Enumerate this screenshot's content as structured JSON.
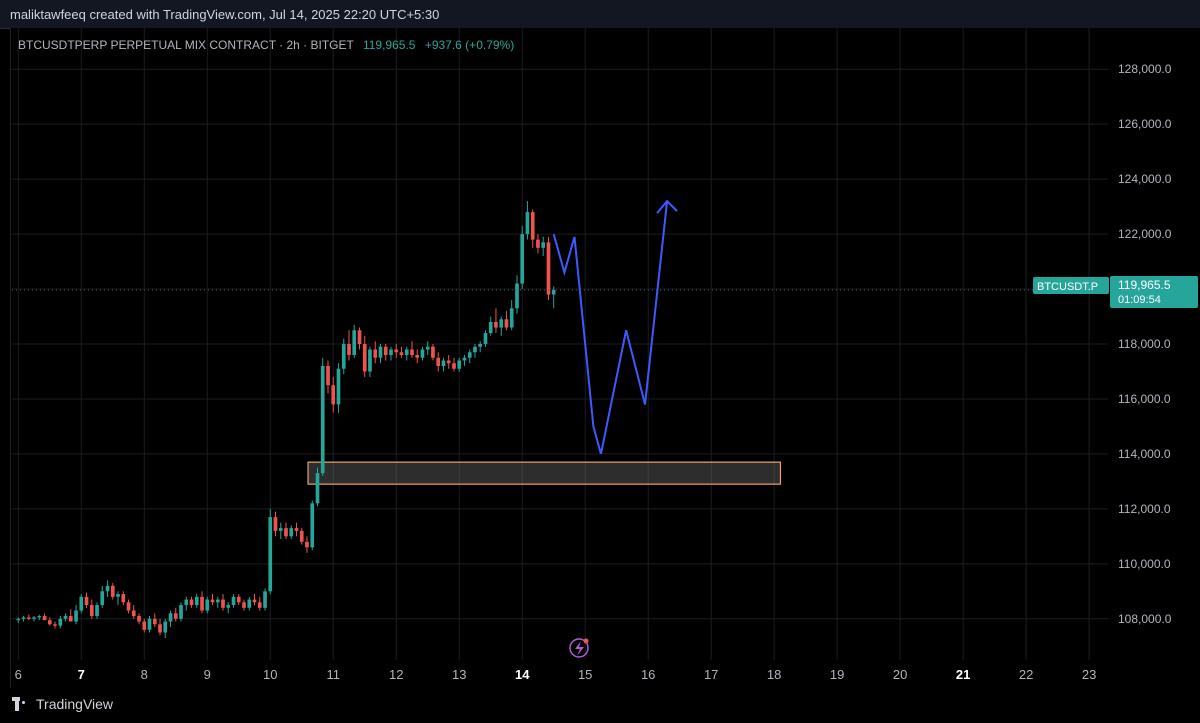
{
  "credit": "maliktawfeeq created with TradingView.com, Jul 14, 2025 22:20 UTC+5:30",
  "legend": {
    "symbol": "BTCUSDTPERP PERPETUAL MIX CONTRACT · 2h · BITGET",
    "price": "119,965.5",
    "change": "+937.6 (+0.79%)"
  },
  "price_tag": {
    "symbol": "BTCUSDT.P",
    "price": "119,965.5",
    "countdown": "01:09:54"
  },
  "brand": "TradingView",
  "colors": {
    "up": "#26a69a",
    "down": "#ef5350",
    "projection": "#3d5afe",
    "zone_border": "#f0a35e",
    "tag": "#26a69a"
  },
  "icons": [
    "tradingview-logo-icon",
    "lightning-icon"
  ],
  "chart_data": {
    "type": "candlestick",
    "timeframe": "2h",
    "y_ticks": [
      108000,
      110000,
      112000,
      114000,
      116000,
      118000,
      120000,
      122000,
      124000,
      126000,
      128000
    ],
    "y_tick_labels": [
      "108,000.0",
      "110,000.0",
      "112,000.0",
      "114,000.0",
      "116,000.0",
      "118,000.0",
      "120,000.0",
      "122,000.0",
      "124,000.0",
      "126,000.0",
      "128,000.0"
    ],
    "x_ticks": [
      6,
      7,
      8,
      9,
      10,
      11,
      12,
      13,
      14,
      15,
      16,
      17,
      18,
      19,
      20,
      21,
      22,
      23
    ],
    "x_tick_labels": [
      "6",
      "7",
      "8",
      "9",
      "10",
      "11",
      "12",
      "13",
      "14",
      "15",
      "16",
      "17",
      "18",
      "19",
      "20",
      "21",
      "22",
      "23"
    ],
    "bold_x_ticks": [
      7,
      14,
      21
    ],
    "ylim": [
      106500,
      129500
    ],
    "xlim": [
      5.9,
      23.3
    ],
    "last_price": 119965.5,
    "candles": [
      [
        6.0,
        107950,
        108050,
        107850,
        108000
      ],
      [
        6.083,
        108000,
        108100,
        107900,
        108050
      ],
      [
        6.167,
        108050,
        108150,
        107950,
        108000
      ],
      [
        6.25,
        108000,
        108100,
        107900,
        108050
      ],
      [
        6.333,
        108050,
        108150,
        107950,
        108100
      ],
      [
        6.417,
        108100,
        108200,
        107950,
        107950
      ],
      [
        6.5,
        107950,
        108050,
        107750,
        107800
      ],
      [
        6.583,
        107800,
        107900,
        107650,
        107750
      ],
      [
        6.667,
        107750,
        108100,
        107650,
        108000
      ],
      [
        6.75,
        108000,
        108200,
        107900,
        108100
      ],
      [
        6.833,
        108100,
        108350,
        107950,
        107900
      ],
      [
        6.917,
        107900,
        108500,
        107800,
        108300
      ],
      [
        7.0,
        108300,
        108900,
        108200,
        108800
      ],
      [
        7.083,
        108800,
        108950,
        108400,
        108500
      ],
      [
        7.167,
        108500,
        108700,
        108000,
        108100
      ],
      [
        7.25,
        108100,
        108600,
        108000,
        108500
      ],
      [
        7.333,
        108500,
        109200,
        108400,
        109000
      ],
      [
        7.417,
        109000,
        109400,
        108800,
        109200
      ],
      [
        7.5,
        109200,
        109300,
        108700,
        108800
      ],
      [
        7.583,
        108800,
        109000,
        108500,
        108900
      ],
      [
        7.667,
        108900,
        109000,
        108500,
        108600
      ],
      [
        7.75,
        108600,
        108700,
        108200,
        108300
      ],
      [
        7.833,
        108300,
        108500,
        108000,
        108100
      ],
      [
        7.917,
        108100,
        108200,
        107800,
        107900
      ],
      [
        8.0,
        107900,
        108000,
        107500,
        107600
      ],
      [
        8.083,
        107600,
        108100,
        107500,
        108000
      ],
      [
        8.167,
        108000,
        108200,
        107700,
        107800
      ],
      [
        8.25,
        107800,
        108000,
        107400,
        107500
      ],
      [
        8.333,
        107500,
        108000,
        107300,
        107900
      ],
      [
        8.417,
        107900,
        108300,
        107700,
        108200
      ],
      [
        8.5,
        108200,
        108400,
        107900,
        108000
      ],
      [
        8.583,
        108000,
        108600,
        107900,
        108500
      ],
      [
        8.667,
        108500,
        108800,
        108300,
        108700
      ],
      [
        8.75,
        108700,
        108800,
        108400,
        108500
      ],
      [
        8.833,
        108500,
        108900,
        108400,
        108800
      ],
      [
        8.917,
        108800,
        109000,
        108200,
        108300
      ],
      [
        9.0,
        108300,
        108800,
        108200,
        108700
      ],
      [
        9.083,
        108700,
        108900,
        108500,
        108600
      ],
      [
        9.167,
        108600,
        108800,
        108400,
        108700
      ],
      [
        9.25,
        108700,
        108900,
        108300,
        108400
      ],
      [
        9.333,
        108400,
        108600,
        108200,
        108500
      ],
      [
        9.417,
        108500,
        108900,
        108400,
        108800
      ],
      [
        9.5,
        108800,
        108900,
        108500,
        108600
      ],
      [
        9.583,
        108600,
        108700,
        108300,
        108400
      ],
      [
        9.667,
        108400,
        108800,
        108300,
        108700
      ],
      [
        9.75,
        108700,
        108900,
        108500,
        108600
      ],
      [
        9.833,
        108600,
        108800,
        108300,
        108400
      ],
      [
        9.917,
        108400,
        109100,
        108300,
        109000
      ],
      [
        10.0,
        109000,
        112000,
        108900,
        111700
      ],
      [
        10.083,
        111700,
        111900,
        111000,
        111200
      ],
      [
        10.167,
        111200,
        111500,
        110900,
        111300
      ],
      [
        10.25,
        111300,
        111500,
        110900,
        111000
      ],
      [
        10.333,
        111000,
        111400,
        110900,
        111300
      ],
      [
        10.417,
        111300,
        111500,
        111000,
        111200
      ],
      [
        10.5,
        111200,
        111300,
        110700,
        110800
      ],
      [
        10.583,
        110800,
        111000,
        110400,
        110600
      ],
      [
        10.667,
        110600,
        112300,
        110500,
        112200
      ],
      [
        10.75,
        112200,
        113500,
        112100,
        113300
      ],
      [
        10.833,
        113300,
        117500,
        113200,
        117200
      ],
      [
        10.917,
        117200,
        117400,
        116200,
        116500
      ],
      [
        11.0,
        116500,
        116800,
        115500,
        115800
      ],
      [
        11.083,
        115800,
        117300,
        115500,
        117100
      ],
      [
        11.167,
        117100,
        118200,
        116900,
        118000
      ],
      [
        11.25,
        118000,
        118500,
        117400,
        117600
      ],
      [
        11.333,
        117600,
        118700,
        117500,
        118500
      ],
      [
        11.417,
        118500,
        118600,
        117800,
        118000
      ],
      [
        11.5,
        118000,
        118300,
        116800,
        117000
      ],
      [
        11.583,
        117000,
        117900,
        116800,
        117800
      ],
      [
        11.667,
        117800,
        118100,
        117300,
        117500
      ],
      [
        11.75,
        117500,
        118000,
        117300,
        117900
      ],
      [
        11.833,
        117900,
        118000,
        117400,
        117600
      ],
      [
        11.917,
        117600,
        117900,
        117400,
        117800
      ],
      [
        12.0,
        117800,
        118000,
        117500,
        117700
      ],
      [
        12.083,
        117700,
        117900,
        117500,
        117600
      ],
      [
        12.167,
        117600,
        117900,
        117400,
        117800
      ],
      [
        12.25,
        117800,
        118100,
        117500,
        117600
      ],
      [
        12.333,
        117600,
        117800,
        117300,
        117500
      ],
      [
        12.417,
        117500,
        117900,
        117400,
        117800
      ],
      [
        12.5,
        117800,
        118100,
        117600,
        117900
      ],
      [
        12.583,
        117900,
        118000,
        117400,
        117500
      ],
      [
        12.667,
        117500,
        117700,
        117000,
        117200
      ],
      [
        12.75,
        117200,
        117500,
        117000,
        117400
      ],
      [
        12.833,
        117400,
        117600,
        117100,
        117300
      ],
      [
        12.917,
        117300,
        117500,
        117000,
        117100
      ],
      [
        13.0,
        117100,
        117500,
        117000,
        117400
      ],
      [
        13.083,
        117400,
        117600,
        117200,
        117500
      ],
      [
        13.167,
        117500,
        117800,
        117300,
        117700
      ],
      [
        13.25,
        117700,
        118000,
        117500,
        117900
      ],
      [
        13.333,
        117900,
        118100,
        117700,
        118000
      ],
      [
        13.417,
        118000,
        118500,
        117900,
        118400
      ],
      [
        13.5,
        118400,
        119000,
        118300,
        118800
      ],
      [
        13.583,
        118800,
        119300,
        118400,
        118600
      ],
      [
        13.667,
        118600,
        119000,
        118300,
        118900
      ],
      [
        13.75,
        118900,
        119200,
        118500,
        118600
      ],
      [
        13.833,
        118600,
        119600,
        118500,
        119300
      ],
      [
        13.917,
        119300,
        120500,
        119100,
        120200
      ],
      [
        14.0,
        120200,
        122300,
        120000,
        122000
      ],
      [
        14.083,
        122000,
        123200,
        121800,
        122800
      ],
      [
        14.167,
        122800,
        122900,
        121500,
        121800
      ],
      [
        14.25,
        121800,
        122000,
        121300,
        121500
      ],
      [
        14.333,
        121500,
        121900,
        121200,
        121700
      ],
      [
        14.417,
        121700,
        121900,
        119600,
        119800
      ],
      [
        14.5,
        119800,
        120100,
        119300,
        119965.5
      ]
    ],
    "zone": {
      "x_start": 10.6,
      "x_end": 18.1,
      "y_low": 112900,
      "y_high": 113700
    },
    "projection_path": [
      [
        14.5,
        122000
      ],
      [
        14.67,
        120600
      ],
      [
        14.83,
        121900
      ],
      [
        15.13,
        115000
      ],
      [
        15.25,
        114000
      ],
      [
        15.65,
        118500
      ],
      [
        15.95,
        115800
      ],
      [
        16.3,
        123200
      ]
    ],
    "projection_arrow_end": [
      16.3,
      123200
    ]
  }
}
